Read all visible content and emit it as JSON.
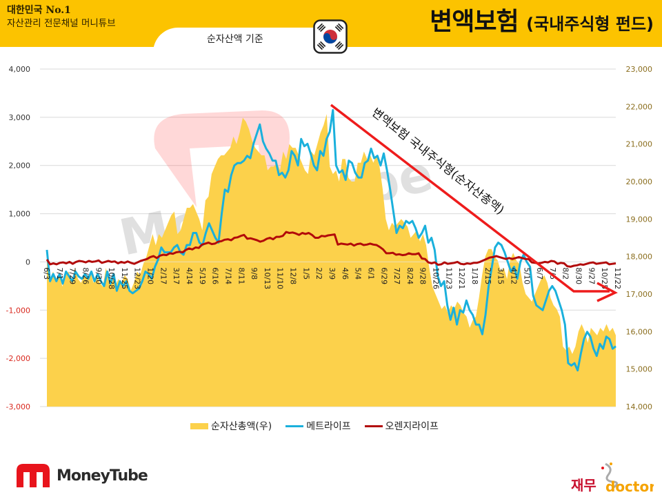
{
  "header": {
    "brand_line1": "대한민국 No.1",
    "brand_line2": "자산관리 전문채널 머니튜브",
    "basis_label": "순자산액 기준",
    "title_main": "변액보험",
    "title_sub": "(국내주식형 펀드)",
    "flag_icon": "south-korea-flag-icon"
  },
  "colors": {
    "header_bg": "#fcc300",
    "area_fill": "#fcd14b",
    "metlife": "#1ab0dc",
    "orange_life": "#b20a0a",
    "arrow": "#ee1c1c",
    "negative_tick": "#d9281e",
    "right_tick": "#8a6d1d"
  },
  "chart_data": {
    "type": "line",
    "title": "변액보험 (국내주식형 펀드)",
    "subtitle": "순자산액 기준",
    "xlabel": "",
    "ylabel": "",
    "ylim": [
      -3000,
      4000
    ],
    "y2lim": [
      14000,
      23000
    ],
    "grid": true,
    "legend_position": "bottom",
    "y_ticks": [
      "4,000",
      "3,000",
      "2,000",
      "1,000",
      "0",
      "-1,000",
      "-2,000",
      "-3,000"
    ],
    "y2_ticks": [
      "23,000",
      "22,000",
      "21,000",
      "20,000",
      "19,000",
      "18,000",
      "17,000",
      "16,000",
      "15,000",
      "14,000"
    ],
    "x_tick_labels": [
      "6/3",
      "7/1",
      "7/29",
      "8/26",
      "9/30",
      "10/28",
      "11/25",
      "12/23",
      "1/20",
      "2/17",
      "3/17",
      "4/14",
      "5/19",
      "6/16",
      "7/14",
      "8/11",
      "9/8",
      "10/13",
      "11/10",
      "12/8",
      "1/5",
      "2/2",
      "3/9",
      "4/6",
      "5/4",
      "6/1",
      "6/29",
      "7/27",
      "8/24",
      "9/28",
      "10/26",
      "11/23",
      "12/21",
      "1/18",
      "2/15",
      "3/15",
      "4/12",
      "5/10",
      "6/7",
      "7/5",
      "8/2",
      "8/30",
      "9/27",
      "10/25",
      "11/22"
    ],
    "x_tick_labels_sample": "every 4th week, weekly data",
    "series": [
      {
        "name": "순자산총액(우)",
        "axis": "right",
        "kind": "area",
        "values": [
          17900,
          17400,
          17600,
          17300,
          17500,
          17200,
          17500,
          17600,
          17300,
          17700,
          17400,
          17300,
          17500,
          17400,
          17600,
          17300,
          17500,
          17300,
          17200,
          17700,
          17300,
          17500,
          17200,
          17400,
          17300,
          17500,
          17400,
          17100,
          17300,
          17600,
          17500,
          17800,
          18000,
          18300,
          18600,
          18300,
          18600,
          18500,
          18700,
          18900,
          19100,
          19200,
          18600,
          18700,
          19000,
          19300,
          19300,
          19400,
          19200,
          19000,
          18700,
          19500,
          19600,
          20200,
          20400,
          20600,
          20700,
          20700,
          20800,
          20900,
          21200,
          21000,
          21300,
          21700,
          21600,
          21400,
          21100,
          20900,
          20800,
          20700,
          20700,
          20300,
          20400,
          20400,
          20500,
          20300,
          20800,
          20600,
          21000,
          20900,
          20900,
          20700,
          20500,
          20300,
          20200,
          20800,
          20700,
          21000,
          21300,
          21500,
          21800,
          20400,
          20200,
          20300,
          20000,
          20600,
          20600,
          20100,
          20000,
          20000,
          20500,
          20500,
          20800,
          20600,
          20700,
          20500,
          20700,
          20400,
          19800,
          19000,
          18700,
          18900,
          18800,
          18900,
          19000,
          18900,
          18800,
          18500,
          18600,
          18700,
          18400,
          18600,
          18300,
          17700,
          17200,
          17000,
          16800,
          16600,
          16700,
          16500,
          16700,
          16600,
          16800,
          16700,
          16500,
          16400,
          16100,
          16300,
          16400,
          16900,
          17500,
          18000,
          18200,
          18200,
          18000,
          17900,
          17600,
          17700,
          17400,
          17900,
          18100,
          17900,
          17800,
          17300,
          17000,
          16900,
          16800,
          17000,
          17200,
          17400,
          17500,
          17300,
          16900,
          16700,
          16600,
          16400,
          15600,
          15500,
          15600,
          15400,
          15600,
          16000,
          16200,
          16000,
          15700,
          16100,
          16000,
          15900,
          16100,
          16000,
          16200,
          16000,
          16100,
          15900
        ]
      },
      {
        "name": "메트라이프",
        "axis": "left",
        "kind": "line",
        "values": [
          250,
          -400,
          -250,
          -400,
          -250,
          -450,
          -200,
          -300,
          -400,
          -200,
          -300,
          -350,
          -250,
          -350,
          -200,
          -400,
          -250,
          -400,
          -500,
          -200,
          -450,
          -250,
          -600,
          -400,
          -500,
          -400,
          -600,
          -650,
          -600,
          -550,
          -400,
          -200,
          -250,
          -350,
          -100,
          50,
          300,
          200,
          200,
          200,
          300,
          350,
          200,
          150,
          350,
          350,
          600,
          600,
          400,
          350,
          600,
          800,
          650,
          500,
          400,
          1000,
          1500,
          1450,
          1800,
          2000,
          2050,
          2050,
          2100,
          2200,
          2150,
          2450,
          2650,
          2850,
          2500,
          2350,
          2250,
          2100,
          2100,
          1800,
          1850,
          1750,
          1900,
          2300,
          2200,
          2000,
          2550,
          2400,
          2450,
          2250,
          2000,
          1900,
          2300,
          2200,
          2550,
          2700,
          3150,
          2000,
          1850,
          1900,
          1700,
          2100,
          2050,
          1850,
          1750,
          1750,
          2050,
          2100,
          2350,
          2150,
          2200,
          2000,
          2250,
          1900,
          1500,
          1050,
          600,
          750,
          700,
          850,
          800,
          850,
          700,
          500,
          600,
          750,
          400,
          500,
          250,
          -300,
          -500,
          -400,
          -900,
          -1200,
          -950,
          -1300,
          -1000,
          -1050,
          -800,
          -1000,
          -1100,
          -1300,
          -1300,
          -1500,
          -1100,
          -500,
          -100,
          300,
          400,
          350,
          200,
          0,
          -200,
          -100,
          -350,
          0,
          150,
          0,
          -100,
          -700,
          -900,
          -950,
          -1000,
          -800,
          -600,
          -500,
          -600,
          -800,
          -1000,
          -1300,
          -2100,
          -2150,
          -2100,
          -2250,
          -1900,
          -1600,
          -1450,
          -1550,
          -1800,
          -1950,
          -1700,
          -1800,
          -1550,
          -1600,
          -1800,
          -1750
        ]
      },
      {
        "name": "오렌지라이프",
        "axis": "left",
        "kind": "line",
        "values": [
          50,
          -50,
          -30,
          -50,
          -20,
          -10,
          -30,
          0,
          -40,
          0,
          20,
          10,
          -10,
          20,
          0,
          10,
          30,
          -20,
          0,
          20,
          0,
          10,
          -30,
          0,
          -20,
          10,
          -20,
          -40,
          -10,
          20,
          40,
          60,
          100,
          120,
          80,
          130,
          150,
          140,
          180,
          170,
          200,
          210,
          200,
          250,
          280,
          260,
          300,
          290,
          360,
          380,
          400,
          370,
          380,
          420,
          430,
          460,
          470,
          450,
          500,
          510,
          540,
          560,
          480,
          490,
          470,
          450,
          420,
          440,
          480,
          500,
          470,
          520,
          520,
          540,
          620,
          600,
          610,
          590,
          560,
          600,
          580,
          600,
          560,
          500,
          500,
          540,
          530,
          550,
          560,
          570,
          360,
          380,
          370,
          360,
          380,
          340,
          370,
          380,
          350,
          360,
          380,
          360,
          350,
          310,
          260,
          180,
          180,
          190,
          150,
          160,
          140,
          150,
          180,
          160,
          160,
          180,
          70,
          60,
          -10,
          -30,
          -10,
          -60,
          -50,
          -10,
          -40,
          -30,
          -20,
          0,
          -40,
          -50,
          -30,
          -40,
          -20,
          -20,
          0,
          30,
          60,
          90,
          100,
          120,
          100,
          80,
          60,
          80,
          60,
          80,
          100,
          80,
          60,
          60,
          -10,
          -20,
          -30,
          -20,
          0,
          -10,
          20,
          10,
          -40,
          -20,
          -30,
          -90,
          -100,
          -80,
          -70,
          -50,
          -60,
          -40,
          -20,
          -10,
          -40,
          -30,
          -20,
          -10,
          -50,
          -40,
          -30
        ]
      }
    ],
    "annotation": {
      "text": "변액보험 국내주식형(순자산총액)",
      "type": "downward red arrow with label"
    }
  },
  "legend": {
    "items": [
      {
        "label": "순자산총액(우)"
      },
      {
        "label": "메트라이프"
      },
      {
        "label": "오렌지라이프"
      }
    ]
  },
  "footer": {
    "left_logo_text": "MoneyTube",
    "right_logo_korean": "재무",
    "right_logo_english": "doctor"
  },
  "watermark": {
    "text": "MoneyTube"
  }
}
